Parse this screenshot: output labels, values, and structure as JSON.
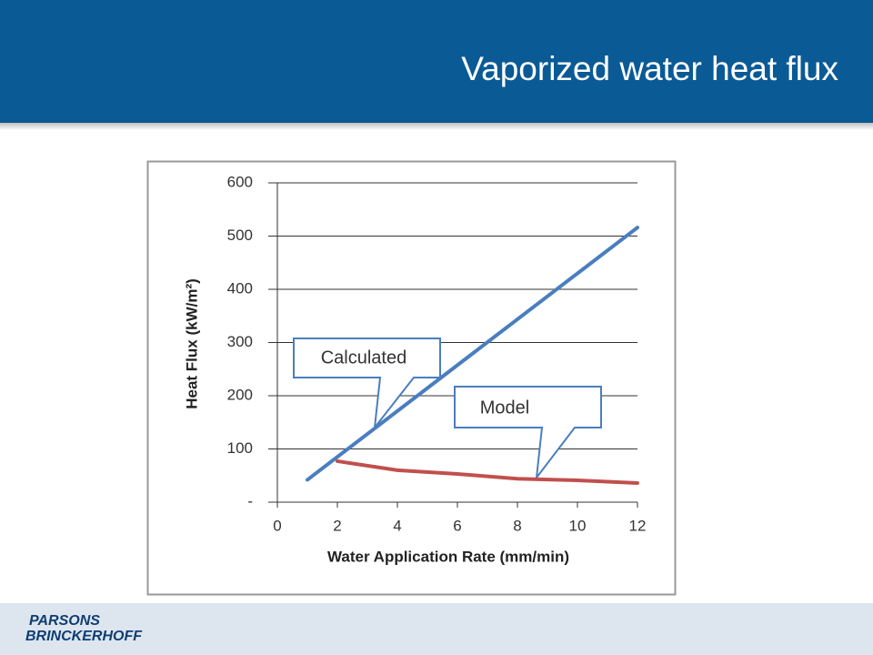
{
  "slide": {
    "title": "Vaporized water heat flux",
    "logo": [
      "PARSONS",
      "BRINCKERHOFF"
    ]
  },
  "chart_data": {
    "type": "line",
    "x_label": "Water Application Rate (mm/min)",
    "y_label": "Heat Flux (kW/m²)",
    "xlim": [
      0,
      12
    ],
    "xticks": [
      0,
      2,
      4,
      6,
      8,
      10,
      12
    ],
    "ylim": [
      0,
      600
    ],
    "yticks": [
      {
        "value": 0,
        "label": "-"
      },
      100,
      200,
      300,
      400,
      500,
      600
    ],
    "grid": true,
    "series": [
      {
        "name": "Calculated",
        "color": "#4a7ebf",
        "x": [
          1,
          12
        ],
        "values": [
          42,
          516
        ]
      },
      {
        "name": "Model",
        "color": "#c0504d",
        "x": [
          2,
          4,
          6,
          8,
          10,
          12
        ],
        "values": [
          77,
          60,
          53,
          44,
          41,
          36
        ]
      }
    ]
  }
}
